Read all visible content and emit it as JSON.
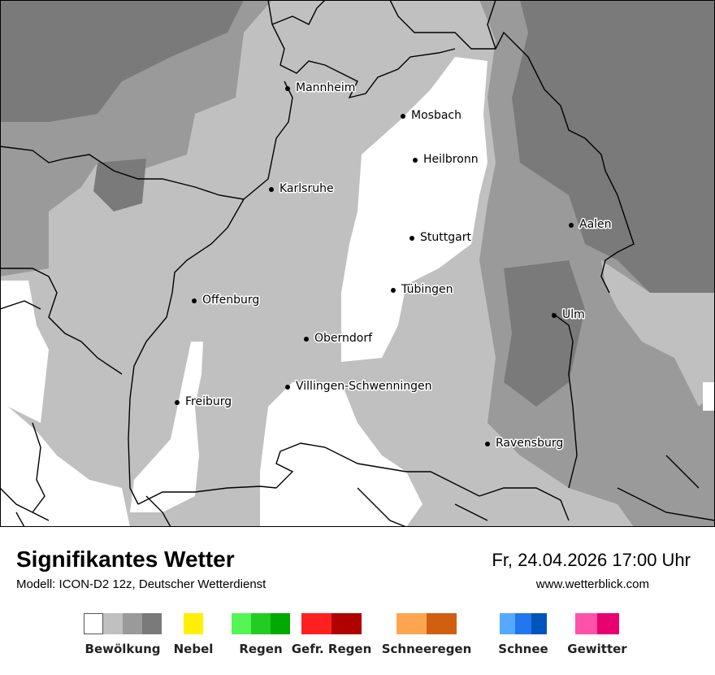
{
  "map": {
    "cities": [
      {
        "name": "Mannheim"
      },
      {
        "name": "Mosbach"
      },
      {
        "name": "Heilbronn"
      },
      {
        "name": "Karlsruhe"
      },
      {
        "name": "Aalen"
      },
      {
        "name": "Stuttgart"
      },
      {
        "name": "Tübingen"
      },
      {
        "name": "Offenburg"
      },
      {
        "name": "Ulm"
      },
      {
        "name": "Oberndorf"
      },
      {
        "name": "Villingen-Schwenningen"
      },
      {
        "name": "Freiburg"
      },
      {
        "name": "Ravensburg"
      }
    ],
    "colors": {
      "clear": "#ffffff",
      "cloud_light": "#c0c0c0",
      "cloud_medium": "#9a9a9a",
      "cloud_dark": "#7a7a7a",
      "border": "#000000"
    }
  },
  "footer": {
    "title": "Signifikantes Wetter",
    "model": "Modell: ICON-D2 12z, Deutscher Wetterdienst",
    "datetime": "Fr, 24.04.2026 17:00 Uhr",
    "website": "www.wetterblick.com"
  },
  "legend": [
    {
      "label": "Bewölkung",
      "colors": [
        "#ffffff",
        "#c0c0c0",
        "#9a9a9a",
        "#7a7a7a"
      ]
    },
    {
      "label": "Nebel",
      "colors": [
        "#ffef00"
      ]
    },
    {
      "label": "Regen",
      "colors": [
        "#55f555",
        "#22cc22",
        "#00aa00"
      ]
    },
    {
      "label": "Gefr. Regen",
      "colors": [
        "#ff2020",
        "#b00000"
      ]
    },
    {
      "label": "Schneeregen",
      "colors": [
        "#ffa550",
        "#d06010"
      ]
    },
    {
      "label": "Schnee",
      "colors": [
        "#55aaff",
        "#2277ee",
        "#0055bb"
      ]
    },
    {
      "label": "Gewitter",
      "colors": [
        "#ff50aa",
        "#e80070"
      ]
    }
  ]
}
